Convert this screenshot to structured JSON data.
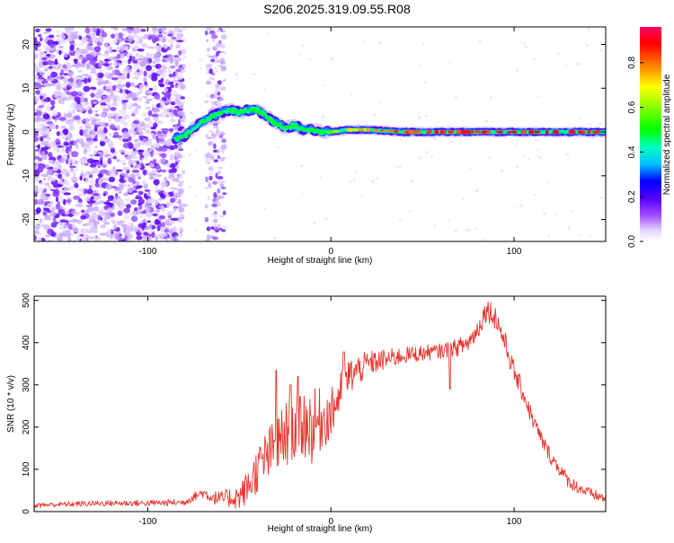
{
  "title": "S206.2025.319.09.55.R08",
  "chart_data": [
    {
      "type": "heatmap",
      "name": "spectrogram",
      "xlabel": "Height of straight line (km)",
      "ylabel": "Frequency (Hz)",
      "xlim": [
        -162,
        150
      ],
      "ylim": [
        -25,
        24
      ],
      "xticks": [
        -100,
        0,
        100
      ],
      "xtick_labels": [
        "-100",
        "0",
        "100"
      ],
      "yticks": [
        -20,
        -10,
        0,
        10,
        20
      ],
      "ytick_labels": [
        "-20",
        "-10",
        "0",
        "10",
        "20"
      ],
      "ridge": {
        "x": [
          -85,
          -80,
          -75,
          -70,
          -65,
          -60,
          -55,
          -50,
          -45,
          -40,
          -35,
          -30,
          -25,
          -20,
          -15,
          -10,
          -5,
          0,
          10,
          20,
          40,
          60,
          80,
          100,
          115,
          130,
          150
        ],
        "y": [
          -1.5,
          -1,
          1,
          2.5,
          3.5,
          4.5,
          5,
          4.5,
          5,
          5,
          3.5,
          2,
          1,
          1.5,
          0.5,
          0.5,
          0,
          0,
          0.5,
          0.5,
          0,
          0,
          0,
          0,
          0,
          0,
          0
        ],
        "amplitude": [
          0.2,
          0.2,
          0.22,
          0.25,
          0.28,
          0.3,
          0.35,
          0.4,
          0.45,
          0.5,
          0.35,
          0.3,
          0.3,
          0.35,
          0.4,
          0.45,
          0.5,
          0.6,
          0.7,
          0.8,
          0.85,
          0.88,
          0.9,
          0.9,
          0.9,
          0.9,
          0.9
        ]
      },
      "noise_region_km": [
        -162,
        -80
      ],
      "noise_strip_km": [
        -68,
        -58
      ],
      "colorbar": {
        "label": "Normalized spectral amplitude",
        "range": [
          0.0,
          0.96
        ],
        "ticks": [
          0.0,
          0.2,
          0.4,
          0.6,
          0.8
        ],
        "tick_labels": [
          "0.0",
          "0.2",
          "0.4",
          "0.6",
          "0.8"
        ]
      }
    },
    {
      "type": "line",
      "name": "snr",
      "xlabel": "Height of straight line (km)",
      "ylabel": "SNR (10 * v/v)",
      "xlim": [
        -162,
        150
      ],
      "ylim": [
        0,
        510
      ],
      "xticks": [
        -100,
        0,
        100
      ],
      "xtick_labels": [
        "-100",
        "0",
        "100"
      ],
      "yticks": [
        0,
        100,
        200,
        300,
        400,
        500
      ],
      "ytick_labels": [
        "0",
        "100",
        "200",
        "300",
        "400",
        "500"
      ],
      "color": "#e8332a",
      "envelope": {
        "x": [
          -162,
          -140,
          -120,
          -100,
          -80,
          -75,
          -70,
          -65,
          -60,
          -50,
          -45,
          -40,
          -35,
          -30,
          -25,
          -20,
          -15,
          -10,
          -5,
          0,
          5,
          10,
          20,
          30,
          40,
          50,
          60,
          65,
          70,
          75,
          80,
          85,
          90,
          95,
          100,
          105,
          110,
          115,
          120,
          125,
          130,
          140,
          150
        ],
        "y": [
          15,
          18,
          20,
          20,
          22,
          35,
          45,
          35,
          30,
          35,
          60,
          100,
          130,
          150,
          180,
          200,
          210,
          200,
          220,
          230,
          280,
          320,
          350,
          360,
          370,
          375,
          380,
          385,
          390,
          400,
          430,
          480,
          460,
          400,
          330,
          280,
          220,
          170,
          130,
          100,
          70,
          45,
          30
        ]
      },
      "noise_amplitude": {
        "x": [
          -162,
          -80,
          -60,
          -50,
          -40,
          -30,
          -20,
          -10,
          0,
          10,
          20,
          40,
          60,
          80,
          90,
          100,
          120,
          150
        ],
        "y": [
          6,
          8,
          18,
          30,
          55,
          75,
          85,
          90,
          60,
          45,
          30,
          20,
          18,
          25,
          30,
          25,
          18,
          12
        ]
      },
      "spikes": [
        {
          "x": -30,
          "y": 335
        },
        {
          "x": -22,
          "y": 300
        },
        {
          "x": -18,
          "y": 320
        },
        {
          "x": 7,
          "y": 378
        },
        {
          "x": 65,
          "y": 290
        }
      ]
    }
  ]
}
